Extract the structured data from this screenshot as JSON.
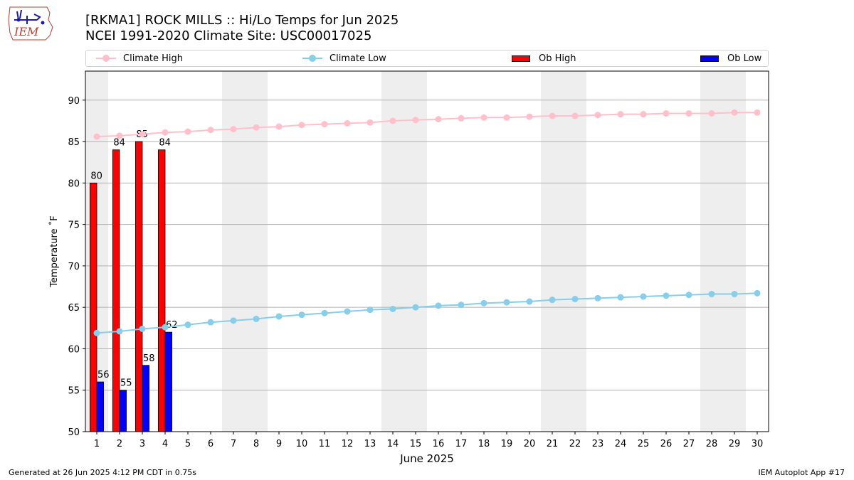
{
  "header": {
    "title_line1": "[RKMA1] ROCK MILLS :: Hi/Lo Temps for Jun 2025",
    "title_line2": "NCEI 1991-2020 Climate Site: USC00017025",
    "logo_text": "IEM"
  },
  "legend": {
    "climate_high": "Climate High",
    "climate_low": "Climate Low",
    "ob_high": "Ob High",
    "ob_low": "Ob Low"
  },
  "footer": {
    "left": "Generated at 26 Jun 2025 4:12 PM CDT in 0.75s",
    "right": "IEM Autoplot App #17"
  },
  "colors": {
    "climate_high": "#ffc0cb",
    "climate_low": "#87ceeb",
    "ob_high": "#ff0000",
    "ob_low": "#0000ff",
    "weekend_shade": "#eeeeee",
    "grid": "#b0b0b0"
  },
  "chart_data": {
    "type": "bar",
    "xlabel": "June 2025",
    "ylabel": "Temperature ˚F",
    "xlim": [
      0.5,
      30.5
    ],
    "ylim": [
      50,
      93.5
    ],
    "yticks": [
      50,
      55,
      60,
      65,
      70,
      75,
      80,
      85,
      90
    ],
    "x": [
      1,
      2,
      3,
      4,
      5,
      6,
      7,
      8,
      9,
      10,
      11,
      12,
      13,
      14,
      15,
      16,
      17,
      18,
      19,
      20,
      21,
      22,
      23,
      24,
      25,
      26,
      27,
      28,
      29,
      30
    ],
    "grid": "horizontal",
    "legend_position": "top",
    "weekend_bands": [
      [
        1,
        1
      ],
      [
        7,
        8
      ],
      [
        14,
        15
      ],
      [
        21,
        22
      ],
      [
        28,
        29
      ]
    ],
    "series": [
      {
        "name": "Climate High",
        "type": "line",
        "values": [
          85.6,
          85.7,
          85.9,
          86.1,
          86.2,
          86.4,
          86.5,
          86.7,
          86.8,
          87.0,
          87.1,
          87.2,
          87.3,
          87.5,
          87.6,
          87.7,
          87.8,
          87.9,
          87.9,
          88.0,
          88.1,
          88.1,
          88.2,
          88.3,
          88.3,
          88.4,
          88.4,
          88.4,
          88.5,
          88.5
        ]
      },
      {
        "name": "Climate Low",
        "type": "line",
        "values": [
          61.9,
          62.1,
          62.4,
          62.6,
          62.9,
          63.2,
          63.4,
          63.6,
          63.9,
          64.1,
          64.3,
          64.5,
          64.7,
          64.8,
          65.0,
          65.2,
          65.3,
          65.5,
          65.6,
          65.7,
          65.9,
          66.0,
          66.1,
          66.2,
          66.3,
          66.4,
          66.5,
          66.6,
          66.6,
          66.7
        ]
      },
      {
        "name": "Ob High",
        "type": "bar",
        "x": [
          1,
          2,
          3,
          4
        ],
        "values": [
          80,
          84,
          85,
          84
        ]
      },
      {
        "name": "Ob Low",
        "type": "bar",
        "x": [
          1,
          2,
          3,
          4
        ],
        "values": [
          56,
          55,
          58,
          62
        ]
      }
    ]
  }
}
